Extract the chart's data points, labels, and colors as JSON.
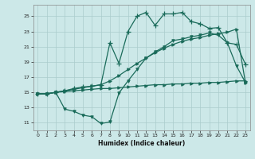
{
  "title": "",
  "xlabel": "Humidex (Indice chaleur)",
  "xlim": [
    -0.5,
    23.5
  ],
  "ylim": [
    10,
    26.5
  ],
  "yticks": [
    11,
    13,
    15,
    17,
    19,
    21,
    23,
    25
  ],
  "xticks": [
    0,
    1,
    2,
    3,
    4,
    5,
    6,
    7,
    8,
    9,
    10,
    11,
    12,
    13,
    14,
    15,
    16,
    17,
    18,
    19,
    20,
    21,
    22,
    23
  ],
  "bg_color": "#cce8e8",
  "grid_color": "#aacccc",
  "line_color": "#1a6b5a",
  "line1_x": [
    0,
    1,
    2,
    3,
    4,
    5,
    6,
    7,
    8,
    9,
    10,
    11,
    12,
    13,
    14,
    15,
    16,
    17,
    18,
    19,
    20,
    21,
    22,
    23
  ],
  "line1_y": [
    14.8,
    14.8,
    15.0,
    15.2,
    15.5,
    15.7,
    15.8,
    16.0,
    21.5,
    18.8,
    23.0,
    25.0,
    25.5,
    23.8,
    25.3,
    25.3,
    25.5,
    24.3,
    24.0,
    23.4,
    23.5,
    21.5,
    21.3,
    18.7
  ],
  "line2_x": [
    0,
    1,
    2,
    3,
    4,
    5,
    6,
    7,
    8,
    9,
    10,
    11,
    12,
    13,
    14,
    15,
    16,
    17,
    18,
    19,
    20,
    21,
    22,
    23
  ],
  "line2_y": [
    14.8,
    14.8,
    15.0,
    15.2,
    15.4,
    15.6,
    15.8,
    16.0,
    16.5,
    17.2,
    18.0,
    18.8,
    19.5,
    20.2,
    20.8,
    21.3,
    21.7,
    22.0,
    22.2,
    22.5,
    22.7,
    22.9,
    23.3,
    16.3
  ],
  "line3_x": [
    0,
    1,
    2,
    3,
    4,
    5,
    6,
    7,
    8,
    9,
    10,
    11,
    12,
    13,
    14,
    15,
    16,
    17,
    18,
    19,
    20,
    21,
    22,
    23
  ],
  "line3_y": [
    14.8,
    14.8,
    15.0,
    12.8,
    12.5,
    12.0,
    11.8,
    10.9,
    11.1,
    14.9,
    16.5,
    18.0,
    19.5,
    20.3,
    21.0,
    21.8,
    22.0,
    22.3,
    22.5,
    22.8,
    22.5,
    21.5,
    18.5,
    16.3
  ],
  "line4_x": [
    0,
    1,
    2,
    3,
    4,
    5,
    6,
    7,
    8,
    9,
    10,
    11,
    12,
    13,
    14,
    15,
    16,
    17,
    18,
    19,
    20,
    21,
    22,
    23
  ],
  "line4_y": [
    14.8,
    14.8,
    15.0,
    15.1,
    15.2,
    15.3,
    15.4,
    15.5,
    15.5,
    15.6,
    15.7,
    15.8,
    15.9,
    16.0,
    16.0,
    16.1,
    16.1,
    16.2,
    16.2,
    16.3,
    16.3,
    16.4,
    16.5,
    16.5
  ]
}
